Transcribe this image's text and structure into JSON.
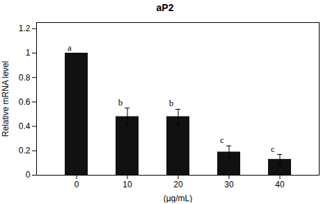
{
  "chart_data": {
    "type": "bar",
    "title": "aP2",
    "categories": [
      "0",
      "10",
      "20",
      "30",
      "40"
    ],
    "values": [
      1.0,
      0.48,
      0.48,
      0.19,
      0.13
    ],
    "errors": [
      0.0,
      0.07,
      0.06,
      0.05,
      0.04
    ],
    "letters": [
      "a",
      "b",
      "b",
      "c",
      "c"
    ],
    "color": "#111111",
    "xlabel": "(μg/mL)",
    "ylabel": "Relative mRNA level",
    "ylim": [
      0,
      1.25
    ],
    "yticks": [
      0,
      0.2,
      0.4,
      0.6,
      0.8,
      1,
      1.2
    ]
  }
}
